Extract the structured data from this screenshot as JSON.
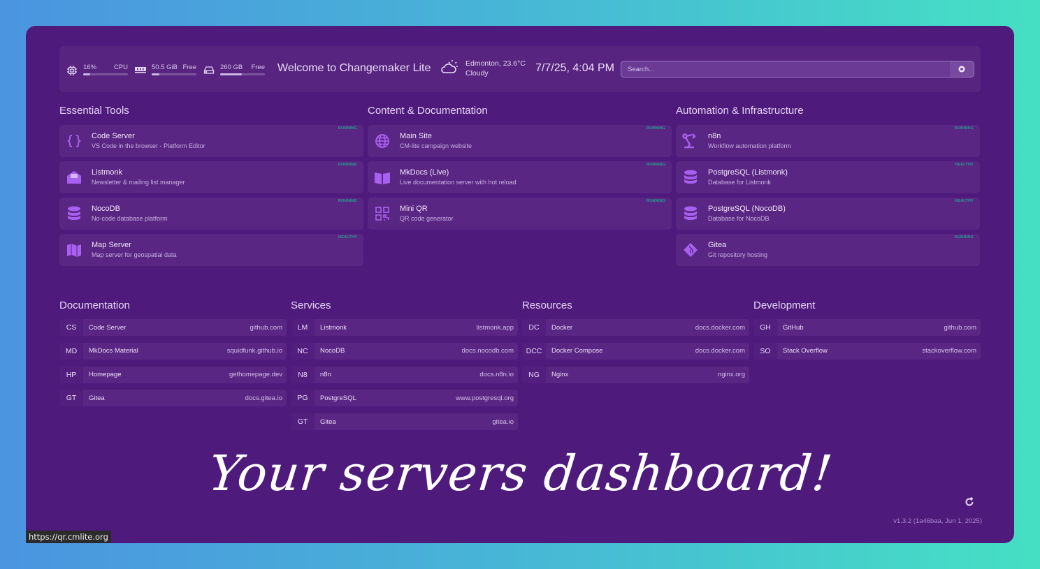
{
  "header": {
    "cpu": {
      "value": "16%",
      "label": "CPU",
      "percent": 16,
      "icon": "cpu-icon"
    },
    "memory": {
      "value": "50.5 GiB",
      "label": "Free",
      "percent": 17,
      "icon": "memory-icon"
    },
    "disk": {
      "value": "260 GB",
      "label": "Free",
      "percent": 48,
      "icon": "hard-drive-icon"
    },
    "welcome": "Welcome to Changemaker Lite",
    "weather": {
      "location": "Edmonton, 23.6°C",
      "condition": "Cloudy",
      "icon": "cloud-sun-icon"
    },
    "datetime": "7/7/25, 4:04 PM",
    "search_placeholder": "Search..."
  },
  "service_groups": [
    {
      "title": "Essential Tools",
      "items": [
        {
          "name": "Code Server",
          "desc": "VS Code in the browser - Platform Editor",
          "status": "RUNNING",
          "icon": "code-braces-icon"
        },
        {
          "name": "Listmonk",
          "desc": "Newsletter & mailing list manager",
          "status": "RUNNING",
          "icon": "mail-icon"
        },
        {
          "name": "NocoDB",
          "desc": "No-code database platform",
          "status": "RUNNING",
          "icon": "database-icon"
        },
        {
          "name": "Map Server",
          "desc": "Map server for geospatial data",
          "status": "HEALTHY",
          "icon": "map-icon"
        }
      ]
    },
    {
      "title": "Content & Documentation",
      "items": [
        {
          "name": "Main Site",
          "desc": "CM-lite campaign website",
          "status": "RUNNING",
          "icon": "globe-icon"
        },
        {
          "name": "MkDocs (Live)",
          "desc": "Live documentation server with hot reload",
          "status": "RUNNING",
          "icon": "book-icon"
        },
        {
          "name": "Mini QR",
          "desc": "QR code generator",
          "status": "RUNNING",
          "icon": "qr-code-icon"
        }
      ]
    },
    {
      "title": "Automation & Infrastructure",
      "items": [
        {
          "name": "n8n",
          "desc": "Workflow automation platform",
          "status": "RUNNING",
          "icon": "robot-arm-icon"
        },
        {
          "name": "PostgreSQL (Listmonk)",
          "desc": "Database for Listmonk",
          "status": "HEALTHY",
          "icon": "database-icon"
        },
        {
          "name": "PostgreSQL (NocoDB)",
          "desc": "Database for NocoDB",
          "status": "HEALTHY",
          "icon": "database-icon"
        },
        {
          "name": "Gitea",
          "desc": "Git repository hosting",
          "status": "RUNNING",
          "icon": "git-icon"
        }
      ]
    }
  ],
  "bookmark_groups": [
    {
      "title": "Documentation",
      "items": [
        {
          "abbr": "CS",
          "name": "Code Server",
          "url": "github.com"
        },
        {
          "abbr": "MD",
          "name": "MkDocs Material",
          "url": "squidfunk.github.io"
        },
        {
          "abbr": "HP",
          "name": "Homepage",
          "url": "gethomepage.dev"
        },
        {
          "abbr": "GT",
          "name": "Gitea",
          "url": "docs.gitea.io"
        }
      ]
    },
    {
      "title": "Services",
      "items": [
        {
          "abbr": "LM",
          "name": "Listmonk",
          "url": "listmonk.app"
        },
        {
          "abbr": "NC",
          "name": "NocoDB",
          "url": "docs.nocodb.com"
        },
        {
          "abbr": "N8",
          "name": "n8n",
          "url": "docs.n8n.io"
        },
        {
          "abbr": "PG",
          "name": "PostgreSQL",
          "url": "www.postgresql.org"
        },
        {
          "abbr": "GT",
          "name": "Gitea",
          "url": "gitea.io"
        }
      ]
    },
    {
      "title": "Resources",
      "items": [
        {
          "abbr": "DC",
          "name": "Docker",
          "url": "docs.docker.com"
        },
        {
          "abbr": "DCC",
          "name": "Docker Compose",
          "url": "docs.docker.com"
        },
        {
          "abbr": "NG",
          "name": "Nginx",
          "url": "nginx.org"
        }
      ]
    },
    {
      "title": "Development",
      "items": [
        {
          "abbr": "GH",
          "name": "GitHub",
          "url": "github.com"
        },
        {
          "abbr": "SO",
          "name": "Stack Overflow",
          "url": "stackoverflow.com"
        }
      ]
    }
  ],
  "overlay_text": "Your servers dashboard!",
  "version": "v1.3.2 (1a46baa, Jun 1, 2025)",
  "status_url": "https://qr.cmlite.org",
  "colors": {
    "background": "#4e1a7c",
    "card": "#5a2683",
    "status": "#1fa38f",
    "icon": "#a860f0"
  }
}
